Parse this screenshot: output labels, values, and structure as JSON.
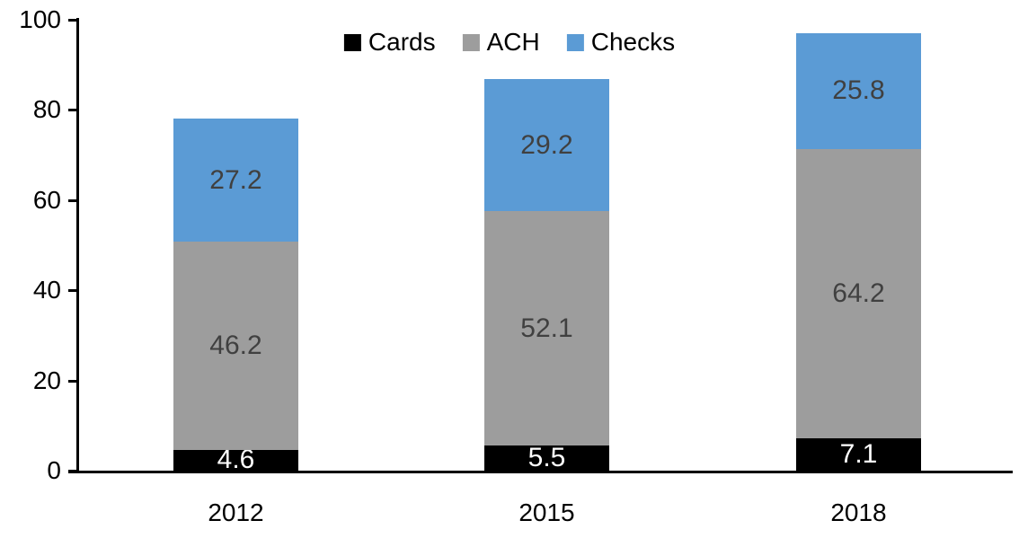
{
  "chart_data": {
    "type": "bar",
    "stacked": true,
    "title": "",
    "categories": [
      "2012",
      "2015",
      "2018"
    ],
    "series": [
      {
        "name": "Cards",
        "color": "#000000",
        "label_color": "#ffffff",
        "values": [
          4.6,
          5.5,
          7.1
        ]
      },
      {
        "name": "ACH",
        "color": "#9d9d9d",
        "label_color": "#404040",
        "values": [
          46.2,
          52.1,
          64.2
        ]
      },
      {
        "name": "Checks",
        "color": "#5b9bd5",
        "label_color": "#404040",
        "values": [
          27.2,
          29.2,
          25.8
        ]
      }
    ],
    "y_ticks": [
      0,
      20,
      40,
      60,
      80,
      100
    ],
    "ylim": [
      0,
      100
    ],
    "xlabel": "",
    "ylabel": "",
    "legend_position": "top",
    "grid": false,
    "axis_color": "#000000",
    "background_color": "#ffffff"
  }
}
